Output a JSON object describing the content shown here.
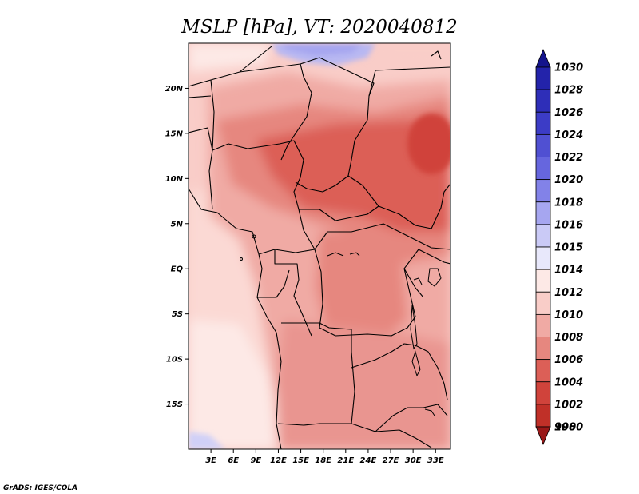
{
  "title": "MSLP [hPa], VT: 2020040812",
  "credit": "GrADS: IGES/COLA",
  "map": {
    "lon_range": [
      0,
      35
    ],
    "lat_range": [
      -20,
      25
    ],
    "lat_ticks": [
      {
        "value": 20,
        "label": "20N"
      },
      {
        "value": 15,
        "label": "15N"
      },
      {
        "value": 10,
        "label": "10N"
      },
      {
        "value": 5,
        "label": "5N"
      },
      {
        "value": 0,
        "label": "EQ"
      },
      {
        "value": -5,
        "label": "5S"
      },
      {
        "value": -10,
        "label": "10S"
      },
      {
        "value": -15,
        "label": "15S"
      }
    ],
    "lon_ticks": [
      {
        "value": 3,
        "label": "3E"
      },
      {
        "value": 6,
        "label": "6E"
      },
      {
        "value": 9,
        "label": "9E"
      },
      {
        "value": 12,
        "label": "12E"
      },
      {
        "value": 15,
        "label": "15E"
      },
      {
        "value": 18,
        "label": "18E"
      },
      {
        "value": 21,
        "label": "21E"
      },
      {
        "value": 24,
        "label": "24E"
      },
      {
        "value": 27,
        "label": "27E"
      },
      {
        "value": 30,
        "label": "30E"
      },
      {
        "value": 33,
        "label": "33E"
      }
    ]
  },
  "colorbar": {
    "levels": [
      {
        "label": "1030",
        "color": "#1a1aa0"
      },
      {
        "label": "1028",
        "color": "#2323aa"
      },
      {
        "label": "1026",
        "color": "#2e2eb8"
      },
      {
        "label": "1024",
        "color": "#3c3cc6"
      },
      {
        "label": "1022",
        "color": "#5050d2"
      },
      {
        "label": "1020",
        "color": "#6666de"
      },
      {
        "label": "1018",
        "color": "#8282e8"
      },
      {
        "label": "1016",
        "color": "#a6a6f0"
      },
      {
        "label": "1015",
        "color": "#cacaf6"
      },
      {
        "label": "1014",
        "color": "#e8e8fb"
      },
      {
        "label": "1012",
        "color": "#fde9e6"
      },
      {
        "label": "1010",
        "color": "#f9cdc8"
      },
      {
        "label": "1008",
        "color": "#f0aaa4"
      },
      {
        "label": "1006",
        "color": "#e6877f"
      },
      {
        "label": "1004",
        "color": "#dc5f57"
      },
      {
        "label": "1002",
        "color": "#d0433b"
      },
      {
        "label": "1000",
        "color": "#c03028"
      },
      {
        "label": "998",
        "color": "#a82020"
      }
    ],
    "top_cap_color": "#14148c",
    "bottom_cap_color": "#9a1818"
  },
  "fields": [
    {
      "name": "high-pressure-patch-north",
      "color": "#b8b8f2",
      "label": "1015"
    },
    {
      "name": "high-pressure-patch-southwest",
      "color": "#d0d0f7",
      "label": "1014"
    },
    {
      "name": "low-pressure-core-east",
      "color": "#d0433b",
      "label": "1002"
    }
  ]
}
